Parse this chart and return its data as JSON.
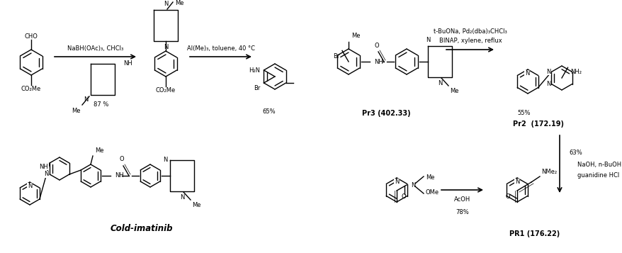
{
  "figsize": [
    8.79,
    3.57
  ],
  "dpi": 100,
  "arrow1_label": "NaBH(OAc)₃, CHCl₃",
  "arrow2_label": "Al(Me)₃, toluene, 40 °C",
  "arrow3_label1": "t-BuONa, Pd₂(dba)₃CHCl₃",
  "arrow3_label2": "BINAP, xylene, reflux",
  "arrow4_label1": "NaOH, n-BuOH",
  "arrow4_label2": "guanidine HCl",
  "arrow5_label": "AcOH",
  "pct1": "87 %",
  "pct2": "65%",
  "pct3": "55%",
  "pct4": "63%",
  "pct5": "78%",
  "pr3_label": "Pr3 (402.33)",
  "pr2_label": "Pr2  (172.19)",
  "pr1_label": "PR1 (176.22)",
  "cold_label": "Cold-imatinib"
}
